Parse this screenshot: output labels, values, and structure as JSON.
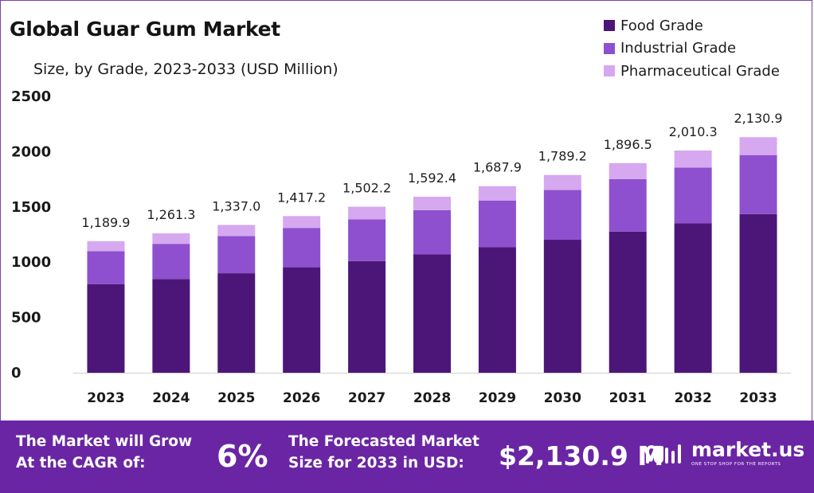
{
  "header": {
    "title": "Global Guar Gum Market",
    "subtitle": "Size, by Grade, 2023-2033 (USD Million)"
  },
  "legend": [
    {
      "label": "Food Grade",
      "color": "#4c1678"
    },
    {
      "label": "Industrial Grade",
      "color": "#8e50ce"
    },
    {
      "label": "Pharmaceutical Grade",
      "color": "#d6a8ef"
    }
  ],
  "chart_data": {
    "type": "bar",
    "stacked": true,
    "categories": [
      "2023",
      "2024",
      "2025",
      "2026",
      "2027",
      "2028",
      "2029",
      "2030",
      "2031",
      "2032",
      "2033"
    ],
    "series": [
      {
        "name": "Food Grade",
        "color": "#4c1678",
        "values": [
          800,
          848,
          900,
          954,
          1010,
          1070,
          1137,
          1203,
          1276,
          1353,
          1435
        ]
      },
      {
        "name": "Industrial Grade",
        "color": "#8e50ce",
        "values": [
          300,
          318,
          336,
          356,
          378,
          400,
          421,
          450,
          476,
          503,
          534
        ]
      },
      {
        "name": "Pharmaceutical Grade",
        "color": "#d6a8ef",
        "values": [
          89.9,
          95.3,
          101.0,
          107.2,
          114.2,
          122.4,
          129.9,
          136.2,
          144.5,
          154.3,
          161.9
        ]
      }
    ],
    "totals": [
      "1,189.9",
      "1,261.3",
      "1,337.0",
      "1,417.2",
      "1,502.2",
      "1,592.4",
      "1,687.9",
      "1,789.2",
      "1,896.5",
      "2,010.3",
      "2,130.9"
    ],
    "yticks": [
      "0",
      "500",
      "1000",
      "1500",
      "2000",
      "2500"
    ],
    "ylim": [
      0,
      2500
    ],
    "legend_position": "top-right",
    "grid": false
  },
  "footer": {
    "grow_label_line1": "The Market will Grow",
    "grow_label_line2": "At the CAGR of:",
    "cagr": "6%",
    "forecast_label_line1": "The Forecasted Market",
    "forecast_label_line2": "Size for 2033 in USD:",
    "forecast_value": "$2,130.9 M",
    "brand_name": "market.us",
    "brand_tagline": "ONE STOP SHOP FOR THE REPORTS"
  }
}
